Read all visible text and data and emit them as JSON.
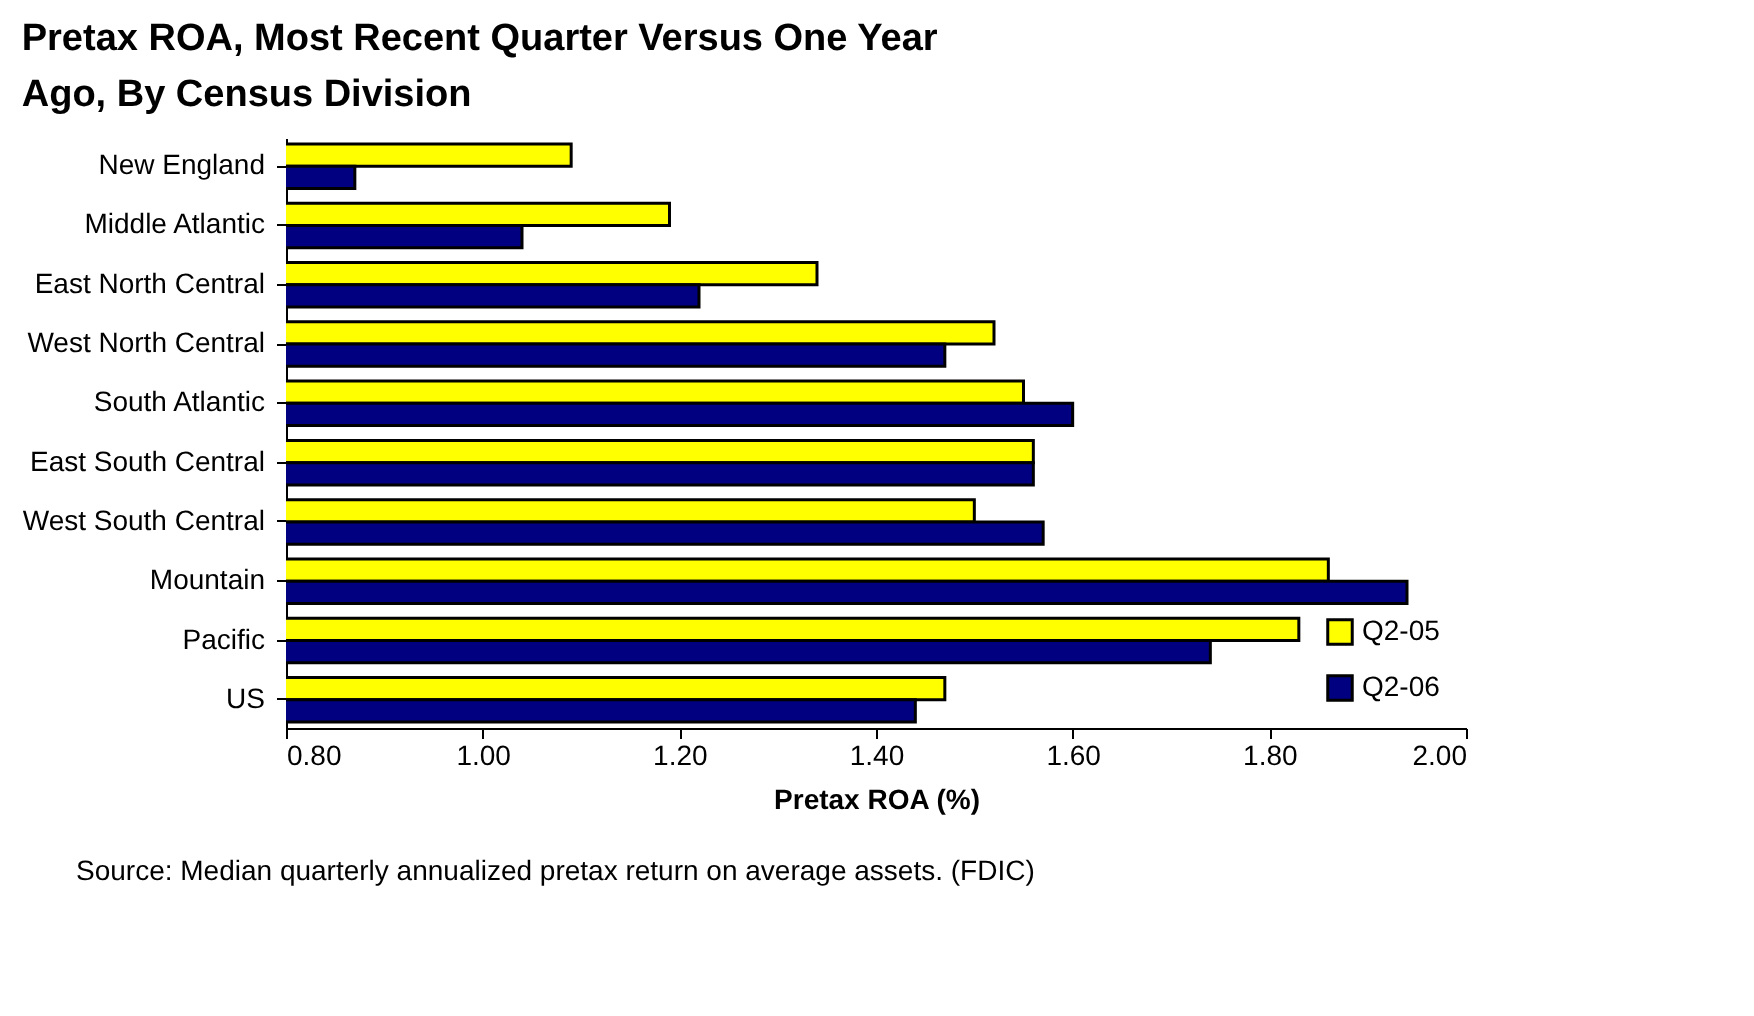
{
  "chart_data": {
    "type": "bar",
    "orientation": "horizontal",
    "title": "Pretax ROA, Most Recent Quarter Versus One Year Ago, By Census Division",
    "xlabel": "Pretax ROA (%)",
    "categories": [
      "New England",
      "Middle Atlantic",
      "East North Central",
      "West North Central",
      "South Atlantic",
      "East South Central",
      "West South Central",
      "Mountain",
      "Pacific",
      "US"
    ],
    "series": [
      {
        "name": "Q2-05",
        "color": "#ffff00",
        "values": [
          1.09,
          1.19,
          1.34,
          1.52,
          1.55,
          1.56,
          1.5,
          1.86,
          1.83,
          1.47
        ]
      },
      {
        "name": "Q2-06",
        "color": "#000080",
        "values": [
          0.87,
          1.04,
          1.22,
          1.47,
          1.6,
          1.56,
          1.57,
          1.94,
          1.74,
          1.44
        ]
      }
    ],
    "xlim": [
      0.8,
      2.0
    ],
    "xticks": [
      {
        "value": 0.8,
        "label": "0.80"
      },
      {
        "value": 1.0,
        "label": "1.00"
      },
      {
        "value": 1.2,
        "label": "1.20"
      },
      {
        "value": 1.4,
        "label": "1.40"
      },
      {
        "value": 1.6,
        "label": "1.60"
      },
      {
        "value": 1.8,
        "label": "1.80"
      },
      {
        "value": 2.0,
        "label": "2.00"
      }
    ],
    "grid": false,
    "legend": "bottom right",
    "annotations": [
      "Source:  Median quarterly annualized pretax return on average assets. (FDIC)"
    ]
  }
}
